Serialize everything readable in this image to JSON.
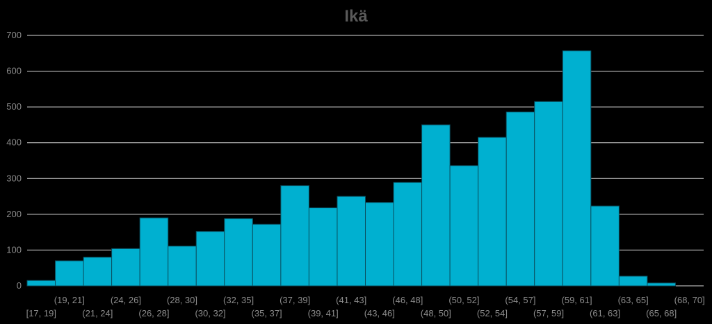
{
  "chart_data": {
    "type": "bar",
    "title": "Ikä",
    "xlabel": "",
    "ylabel": "",
    "ylim": [
      0,
      700
    ],
    "y_ticks": [
      "0",
      "100",
      "200",
      "300",
      "400",
      "500",
      "600",
      "700"
    ],
    "grid": true,
    "legend": "none",
    "colors": {
      "bar": "#00b0d0",
      "bar_edge": "#0a4f60",
      "background": "#000000",
      "gridline": "#d9d9d9",
      "title": "#595959",
      "tick_label": "#8c8c8c"
    },
    "categories": [
      "[17, 19]",
      "(19, 21]",
      "(21, 24]",
      "(24, 26]",
      "(26, 28]",
      "(28, 30]",
      "(30, 32]",
      "(32, 35]",
      "(35, 37]",
      "(37, 39]",
      "(39, 41]",
      "(41, 43]",
      "(43, 46]",
      "(46, 48]",
      "(48, 50]",
      "(50, 52]",
      "(52, 54]",
      "(54, 57]",
      "(57, 59]",
      "(59, 61]",
      "(61, 63]",
      "(63, 65]",
      "(65, 68]",
      "(68, 70]"
    ],
    "values": [
      15,
      70,
      80,
      104,
      190,
      111,
      152,
      188,
      172,
      280,
      218,
      250,
      233,
      289,
      450,
      336,
      415,
      486,
      515,
      657,
      223,
      27,
      8,
      0
    ]
  }
}
